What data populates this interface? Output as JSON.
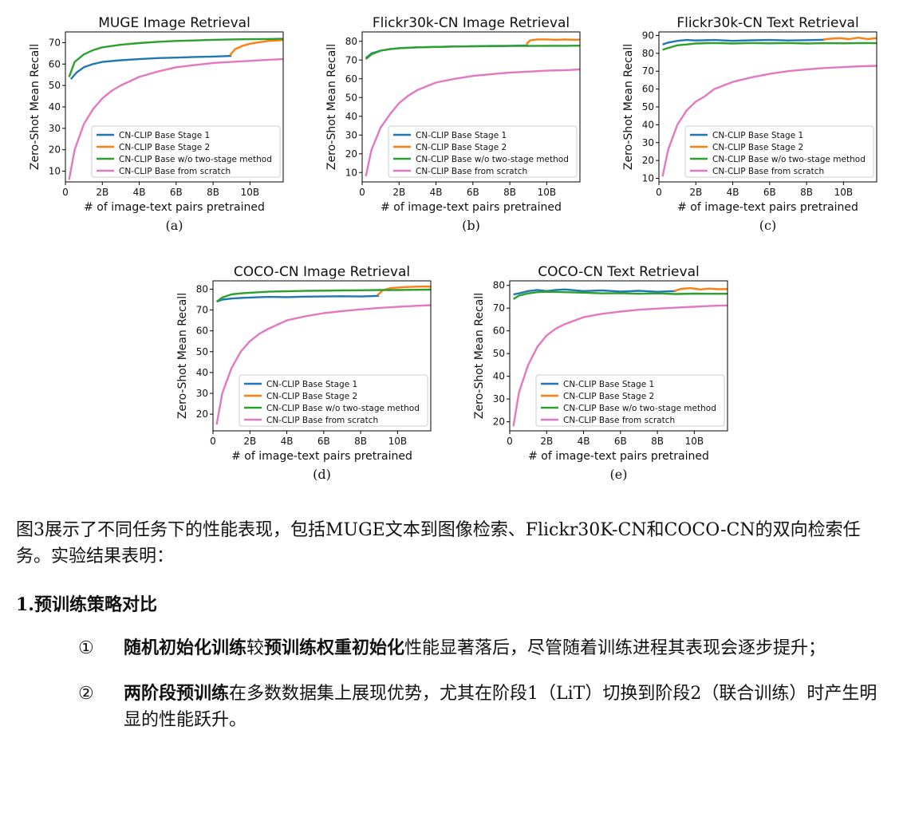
{
  "figure": {
    "legend": [
      "CN-CLIP Base Stage 1",
      "CN-CLIP Base Stage 2",
      "CN-CLIP Base w/o two-stage method",
      "CN-CLIP Base from scratch"
    ],
    "series_colors": [
      "#1f77b4",
      "#ff7f0e",
      "#2ca02c",
      "#e377c2"
    ]
  },
  "chart_data": [
    {
      "type": "line",
      "tag": "(a)",
      "title": "MUGE Image Retrieval",
      "xlabel": "# of image-text pairs pretrained",
      "ylabel": "Zero-Shot Mean Recall",
      "xlim": [
        0,
        11.8
      ],
      "ylim": [
        5,
        75
      ],
      "xticks": [
        0,
        2,
        4,
        6,
        8,
        10
      ],
      "xtick_labels": [
        "0",
        "2B",
        "4B",
        "6B",
        "8B",
        "10B"
      ],
      "yticks": [
        10,
        20,
        30,
        40,
        50,
        60,
        70
      ],
      "ytick_labels": [
        "10",
        "20",
        "30",
        "40",
        "50",
        "60",
        "70"
      ],
      "legend_position": "lower-right",
      "series": [
        {
          "name": "CN-CLIP Base Stage 1",
          "x": [
            0.3,
            0.6,
            1,
            1.5,
            2,
            3,
            4,
            5,
            6,
            7,
            8,
            9
          ],
          "y": [
            53,
            56,
            58.5,
            60,
            61,
            61.8,
            62.3,
            62.8,
            63,
            63.3,
            63.5,
            63.8
          ]
        },
        {
          "name": "CN-CLIP Base Stage 2",
          "x": [
            8.9,
            9.2,
            9.6,
            10,
            10.5,
            11,
            11.5,
            11.8
          ],
          "y": [
            64,
            67,
            68.5,
            69.5,
            70.2,
            70.8,
            71,
            71.2
          ]
        },
        {
          "name": "CN-CLIP Base w/o two-stage method",
          "x": [
            0.2,
            0.5,
            1,
            1.5,
            2,
            3,
            4,
            5,
            6,
            7,
            8,
            9,
            10,
            11,
            11.8
          ],
          "y": [
            54,
            61,
            64.5,
            66.5,
            67.8,
            69,
            69.8,
            70.4,
            70.8,
            71,
            71.3,
            71.5,
            71.6,
            71.7,
            71.8
          ]
        },
        {
          "name": "CN-CLIP Base from scratch",
          "x": [
            0.2,
            0.5,
            1,
            1.5,
            2,
            2.5,
            3,
            4,
            5,
            6,
            7,
            8,
            9,
            10,
            11,
            11.8
          ],
          "y": [
            6,
            20,
            32,
            39,
            44,
            47.5,
            50,
            54,
            56.5,
            58.5,
            59.5,
            60.5,
            61,
            61.5,
            62,
            62.3
          ]
        }
      ]
    },
    {
      "type": "line",
      "tag": "(b)",
      "title": "Flickr30k-CN Image Retrieval",
      "xlabel": "# of image-text pairs pretrained",
      "ylabel": "Zero-Shot Mean Recall",
      "xlim": [
        0,
        11.8
      ],
      "ylim": [
        5,
        85
      ],
      "xticks": [
        0,
        2,
        4,
        6,
        8,
        10
      ],
      "xtick_labels": [
        "0",
        "2B",
        "4B",
        "6B",
        "8B",
        "10B"
      ],
      "yticks": [
        10,
        20,
        30,
        40,
        50,
        60,
        70,
        80
      ],
      "ytick_labels": [
        "10",
        "20",
        "30",
        "40",
        "50",
        "60",
        "70",
        "80"
      ],
      "legend_position": "lower-right",
      "series": [
        {
          "name": "CN-CLIP Base Stage 1",
          "x": [
            0.2,
            0.5,
            1,
            1.5,
            2,
            3,
            4,
            5,
            6,
            7,
            8,
            9
          ],
          "y": [
            71,
            73.5,
            75,
            75.8,
            76.3,
            76.8,
            77,
            77.2,
            77.4,
            77.5,
            77.6,
            77.8
          ]
        },
        {
          "name": "CN-CLIP Base Stage 2",
          "x": [
            8.9,
            9.1,
            9.5,
            10,
            10.5,
            11,
            11.5,
            11.8
          ],
          "y": [
            78.5,
            80.5,
            81,
            81,
            80.8,
            81,
            80.8,
            80.9
          ]
        },
        {
          "name": "CN-CLIP Base w/o two-stage method",
          "x": [
            0.2,
            0.5,
            1,
            1.5,
            2,
            3,
            4,
            5,
            6,
            7,
            8,
            9,
            10,
            11,
            11.8
          ],
          "y": [
            70.5,
            73,
            75,
            75.8,
            76.3,
            76.8,
            77,
            77.2,
            77.3,
            77.4,
            77.5,
            77.5,
            77.6,
            77.6,
            77.7
          ]
        },
        {
          "name": "CN-CLIP Base from scratch",
          "x": [
            0.2,
            0.5,
            1,
            1.5,
            2,
            2.5,
            3,
            4,
            5,
            6,
            7,
            8,
            9,
            10,
            11,
            11.8
          ],
          "y": [
            8,
            22,
            34,
            41,
            47,
            51,
            54,
            58,
            60,
            61.5,
            62.5,
            63.3,
            63.8,
            64.3,
            64.6,
            65
          ]
        }
      ]
    },
    {
      "type": "line",
      "tag": "(c)",
      "title": "Flickr30k-CN Text Retrieval",
      "xlabel": "# of image-text pairs pretrained",
      "ylabel": "Zero-Shot Mean Recall",
      "xlim": [
        0,
        11.8
      ],
      "ylim": [
        8,
        92
      ],
      "xticks": [
        0,
        2,
        4,
        6,
        8,
        10
      ],
      "xtick_labels": [
        "0",
        "2B",
        "4B",
        "6B",
        "8B",
        "10B"
      ],
      "yticks": [
        10,
        20,
        30,
        40,
        50,
        60,
        70,
        80,
        90
      ],
      "ytick_labels": [
        "10",
        "20",
        "30",
        "40",
        "50",
        "60",
        "70",
        "80",
        "90"
      ],
      "legend_position": "lower-right",
      "series": [
        {
          "name": "CN-CLIP Base Stage 1",
          "x": [
            0.2,
            0.5,
            1,
            1.5,
            2,
            3,
            4,
            5,
            6,
            7,
            8,
            9
          ],
          "y": [
            85,
            86,
            87,
            87.5,
            87.2,
            87.5,
            87,
            87.3,
            87.5,
            87.2,
            87.4,
            87.6
          ]
        },
        {
          "name": "CN-CLIP Base Stage 2",
          "x": [
            8.9,
            9.3,
            9.8,
            10.3,
            10.8,
            11.3,
            11.8
          ],
          "y": [
            87.8,
            88.2,
            88.5,
            88,
            88.8,
            88,
            88.5
          ]
        },
        {
          "name": "CN-CLIP Base w/o two-stage method",
          "x": [
            0.2,
            0.5,
            1,
            1.5,
            2,
            3,
            4,
            5,
            6,
            7,
            8,
            9,
            10,
            11,
            11.8
          ],
          "y": [
            82,
            83,
            84.5,
            85,
            85.5,
            85.8,
            85.5,
            85.8,
            85.6,
            85.8,
            85.5,
            85.7,
            85.6,
            85.8,
            85.7
          ]
        },
        {
          "name": "CN-CLIP Base from scratch",
          "x": [
            0.2,
            0.5,
            1,
            1.5,
            2,
            2.5,
            3,
            4,
            5,
            6,
            7,
            8,
            9,
            10,
            11,
            11.8
          ],
          "y": [
            11,
            26,
            40,
            48,
            53,
            56,
            60,
            64,
            66.5,
            68.5,
            70,
            71,
            71.8,
            72.3,
            72.8,
            73
          ]
        }
      ]
    },
    {
      "type": "line",
      "tag": "(d)",
      "title": "COCO-CN Image Retrieval",
      "xlabel": "# of image-text pairs pretrained",
      "ylabel": "Zero-Shot Mean Recall",
      "xlim": [
        0,
        11.8
      ],
      "ylim": [
        12,
        84
      ],
      "xticks": [
        0,
        2,
        4,
        6,
        8,
        10
      ],
      "xtick_labels": [
        "0",
        "2B",
        "4B",
        "6B",
        "8B",
        "10B"
      ],
      "yticks": [
        20,
        30,
        40,
        50,
        60,
        70,
        80
      ],
      "ytick_labels": [
        "20",
        "30",
        "40",
        "50",
        "60",
        "70",
        "80"
      ],
      "legend_position": "lower-right",
      "series": [
        {
          "name": "CN-CLIP Base Stage 1",
          "x": [
            0.2,
            0.5,
            1,
            1.5,
            2,
            3,
            4,
            5,
            6,
            7,
            8,
            9
          ],
          "y": [
            74,
            75,
            75.5,
            75.8,
            76,
            76.3,
            76.2,
            76.4,
            76.5,
            76.6,
            76.5,
            76.8
          ]
        },
        {
          "name": "CN-CLIP Base Stage 2",
          "x": [
            8.9,
            9.2,
            9.6,
            10,
            10.5,
            11,
            11.5,
            11.8
          ],
          "y": [
            77,
            79.5,
            80.5,
            80.8,
            81,
            81.2,
            81.3,
            81.2
          ]
        },
        {
          "name": "CN-CLIP Base w/o two-stage method",
          "x": [
            0.2,
            0.5,
            1,
            1.5,
            2,
            3,
            4,
            5,
            6,
            7,
            8,
            9,
            10,
            11,
            11.8
          ],
          "y": [
            74,
            76,
            77.5,
            78,
            78.3,
            78.8,
            79,
            79.2,
            79.3,
            79.4,
            79.5,
            79.6,
            79.6,
            79.7,
            79.8
          ]
        },
        {
          "name": "CN-CLIP Base from scratch",
          "x": [
            0.2,
            0.5,
            1,
            1.5,
            2,
            2.5,
            3,
            4,
            5,
            6,
            7,
            8,
            9,
            10,
            11,
            11.8
          ],
          "y": [
            15,
            30,
            42,
            50,
            55,
            58.5,
            61,
            65,
            67,
            68.5,
            69.5,
            70.3,
            71,
            71.5,
            72,
            72.3
          ]
        }
      ]
    },
    {
      "type": "line",
      "tag": "(e)",
      "title": "COCO-CN Text Retrieval",
      "xlabel": "# of image-text pairs pretrained",
      "ylabel": "Zero-Shot Mean Recall",
      "xlim": [
        0,
        11.8
      ],
      "ylim": [
        16,
        82
      ],
      "xticks": [
        0,
        2,
        4,
        6,
        8,
        10
      ],
      "xtick_labels": [
        "0",
        "2B",
        "4B",
        "6B",
        "8B",
        "10B"
      ],
      "yticks": [
        20,
        30,
        40,
        50,
        60,
        70,
        80
      ],
      "ytick_labels": [
        "20",
        "30",
        "40",
        "50",
        "60",
        "70",
        "80"
      ],
      "legend_position": "lower-right",
      "series": [
        {
          "name": "CN-CLIP Base Stage 1",
          "x": [
            0.2,
            0.5,
            1,
            1.5,
            2,
            2.5,
            3,
            4,
            5,
            6,
            7,
            8,
            9
          ],
          "y": [
            76,
            76.5,
            77.5,
            78,
            77.5,
            78,
            78.2,
            77.5,
            77.8,
            77.3,
            77.6,
            77.2,
            77.5
          ]
        },
        {
          "name": "CN-CLIP Base Stage 2",
          "x": [
            8.9,
            9.3,
            9.8,
            10.3,
            10.8,
            11.3,
            11.8
          ],
          "y": [
            77.5,
            78.5,
            78.8,
            78.2,
            78.6,
            78.3,
            78.4
          ]
        },
        {
          "name": "CN-CLIP Base w/o two-stage method",
          "x": [
            0.2,
            0.5,
            1,
            1.5,
            2,
            3,
            4,
            5,
            6,
            7,
            8,
            9,
            10,
            11,
            11.8
          ],
          "y": [
            74,
            75.5,
            76.5,
            77,
            77.2,
            77,
            76.8,
            76.5,
            76.6,
            76.3,
            76.5,
            76.2,
            76.4,
            76.3,
            76.3
          ]
        },
        {
          "name": "CN-CLIP Base from scratch",
          "x": [
            0.2,
            0.5,
            1,
            1.5,
            2,
            2.5,
            3,
            4,
            5,
            6,
            7,
            8,
            9,
            10,
            11,
            11.8
          ],
          "y": [
            18,
            33,
            45,
            53,
            58,
            61,
            63,
            66,
            67.5,
            68.5,
            69.3,
            69.8,
            70.2,
            70.6,
            71,
            71.2
          ]
        }
      ]
    }
  ],
  "text": {
    "intro": "图3展示了不同任务下的性能表现，包括MUGE文本到图像检索、Flickr30K-CN和COCO-CN的双向检索任务。实验结果表明：",
    "heading": "1.预训练策略对比",
    "items": [
      {
        "num": "①",
        "bold1": "随机初始化训练",
        "mid": "较",
        "bold2": "预训练权重初始化",
        "rest": "性能显著落后，尽管随着训练进程其表现会逐步提升；"
      },
      {
        "num": "②",
        "bold1": "两阶段预训练",
        "mid": "",
        "bold2": "",
        "rest": "在多数数据集上展现优势，尤其在阶段1（LiT）切换到阶段2（联合训练）时产生明显的性能跃升。"
      }
    ]
  }
}
